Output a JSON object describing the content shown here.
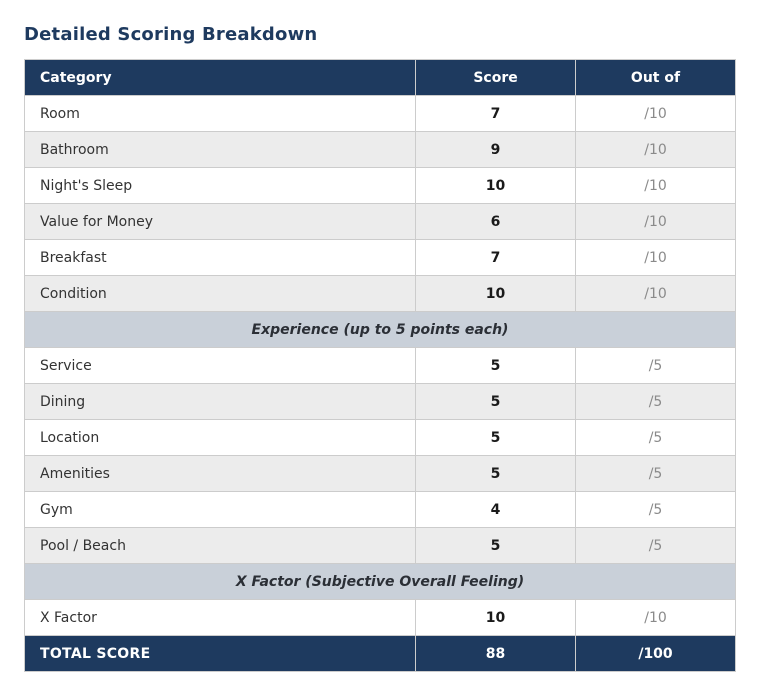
{
  "page": {
    "title": "Detailed Scoring Breakdown"
  },
  "colors": {
    "navy": "#1e3a5f",
    "section-bg": "#c9d0d9",
    "alt-bg": "#ececec",
    "border": "#cccccc",
    "text": "#333333",
    "score-text": "#1a1a1a",
    "muted": "#8a8a8a"
  },
  "chart_data": {
    "type": "table",
    "title": "Detailed Scoring Breakdown",
    "columns": [
      "Category",
      "Score",
      "Out of"
    ],
    "rows": [
      {
        "type": "item",
        "category": "Room",
        "score": "7",
        "out_of": "/10"
      },
      {
        "type": "item",
        "category": "Bathroom",
        "score": "9",
        "out_of": "/10"
      },
      {
        "type": "item",
        "category": "Night's Sleep",
        "score": "10",
        "out_of": "/10"
      },
      {
        "type": "item",
        "category": "Value for Money",
        "score": "6",
        "out_of": "/10"
      },
      {
        "type": "item",
        "category": "Breakfast",
        "score": "7",
        "out_of": "/10"
      },
      {
        "type": "item",
        "category": "Condition",
        "score": "10",
        "out_of": "/10"
      },
      {
        "type": "section",
        "label": "Experience (up to 5 points each)"
      },
      {
        "type": "item",
        "category": "Service",
        "score": "5",
        "out_of": "/5"
      },
      {
        "type": "item",
        "category": "Dining",
        "score": "5",
        "out_of": "/5"
      },
      {
        "type": "item",
        "category": "Location",
        "score": "5",
        "out_of": "/5"
      },
      {
        "type": "item",
        "category": "Amenities",
        "score": "5",
        "out_of": "/5"
      },
      {
        "type": "item",
        "category": "Gym",
        "score": "4",
        "out_of": "/5"
      },
      {
        "type": "item",
        "category": "Pool / Beach",
        "score": "5",
        "out_of": "/5"
      },
      {
        "type": "section",
        "label": "X Factor (Subjective Overall Feeling)"
      },
      {
        "type": "item",
        "category": "X Factor",
        "score": "10",
        "out_of": "/10"
      }
    ],
    "total": {
      "label": "TOTAL SCORE",
      "score": "88",
      "out_of": "/100"
    }
  }
}
